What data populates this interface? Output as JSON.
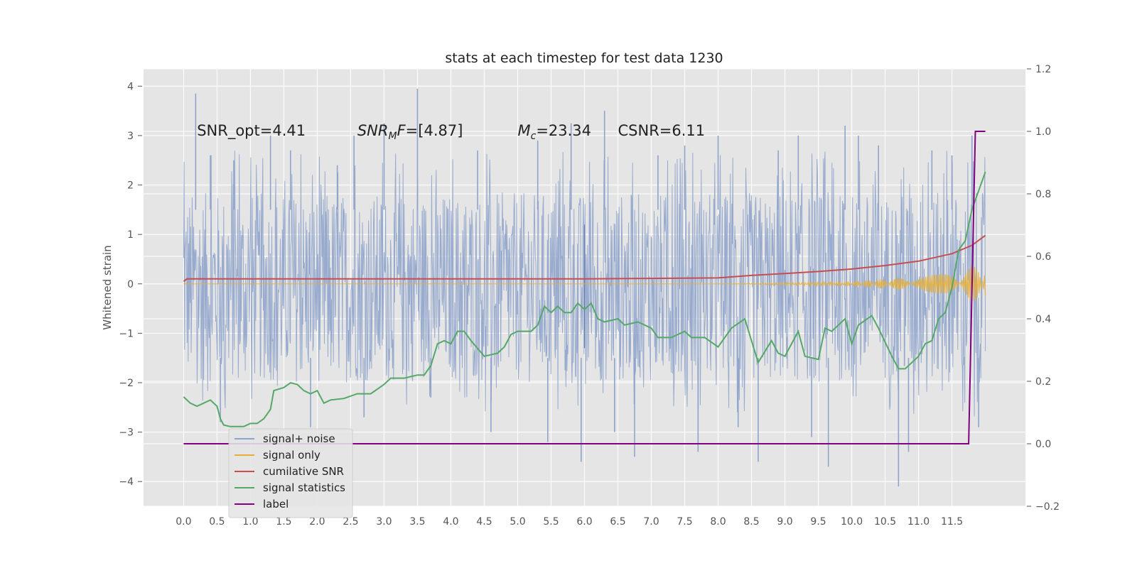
{
  "chart_data": {
    "type": "line",
    "title": "stats at each timestep for test data 1230",
    "xlabel": "",
    "ylabel": "Whitened strain",
    "ylabel_right": "",
    "xlim": [
      -0.6,
      12.6
    ],
    "ylim": [
      -4.5,
      4.35
    ],
    "ylim_right": [
      -0.2,
      1.2
    ],
    "xticks": [
      "0.0",
      "0.5",
      "1.0",
      "1.5",
      "2.0",
      "2.5",
      "3.0",
      "3.5",
      "4.0",
      "4.5",
      "5.0",
      "5.5",
      "6.0",
      "6.5",
      "7.0",
      "7.5",
      "8.0",
      "8.5",
      "9.0",
      "9.5",
      "10.0",
      "10.5",
      "11.0",
      "11.5"
    ],
    "yticks_left": [
      "4",
      "3",
      "2",
      "1",
      "0",
      "−1",
      "−2",
      "−3",
      "−4"
    ],
    "yticks_right": [
      "1.2",
      "1.0",
      "0.8",
      "0.6",
      "0.4",
      "0.2",
      "0.0",
      "−0.2"
    ],
    "grid": true,
    "legend_position": "lower-left",
    "annotations": [
      {
        "text": "SNR_opt=4.41",
        "x": 0.2,
        "y": 3.1
      },
      {
        "text": "SNR_MF=[4.87]",
        "math": true,
        "x": 2.6,
        "y": 3.1
      },
      {
        "text": "M_c=23.34",
        "math": true,
        "x": 5.0,
        "y": 3.1
      },
      {
        "text": "CSNR=6.11",
        "x": 6.5,
        "y": 3.1
      }
    ],
    "series": [
      {
        "name": "signal+ noise",
        "axis": "left",
        "color": "#8fa4cb",
        "x_range": [
          0,
          12.0
        ],
        "band": [
          -2.0,
          1.85
        ],
        "spikes": [
          {
            "x": 0.18,
            "y": 3.85
          },
          {
            "x": 0.4,
            "y": 2.6
          },
          {
            "x": 0.55,
            "y": -2.8
          },
          {
            "x": 0.75,
            "y": 2.5
          },
          {
            "x": 1.3,
            "y": 3.0
          },
          {
            "x": 1.6,
            "y": 2.7
          },
          {
            "x": 1.9,
            "y": -2.9
          },
          {
            "x": 2.3,
            "y": 2.4
          },
          {
            "x": 2.55,
            "y": 3.0
          },
          {
            "x": 2.7,
            "y": -2.7
          },
          {
            "x": 3.0,
            "y": 3.25
          },
          {
            "x": 3.5,
            "y": 3.95
          },
          {
            "x": 3.7,
            "y": -2.3
          },
          {
            "x": 4.4,
            "y": 2.7
          },
          {
            "x": 4.6,
            "y": -3.0
          },
          {
            "x": 5.3,
            "y": 2.9
          },
          {
            "x": 5.45,
            "y": -3.2
          },
          {
            "x": 5.8,
            "y": 3.25
          },
          {
            "x": 5.95,
            "y": -3.6
          },
          {
            "x": 6.3,
            "y": 3.5
          },
          {
            "x": 6.45,
            "y": -3.0
          },
          {
            "x": 6.75,
            "y": -3.5
          },
          {
            "x": 7.1,
            "y": 2.6
          },
          {
            "x": 7.5,
            "y": 2.8
          },
          {
            "x": 7.7,
            "y": -3.4
          },
          {
            "x": 8.0,
            "y": 3.0
          },
          {
            "x": 8.3,
            "y": -2.9
          },
          {
            "x": 8.6,
            "y": -3.6
          },
          {
            "x": 8.9,
            "y": 2.7
          },
          {
            "x": 9.2,
            "y": 3.0
          },
          {
            "x": 9.4,
            "y": -3.1
          },
          {
            "x": 9.65,
            "y": -3.7
          },
          {
            "x": 9.9,
            "y": 3.2
          },
          {
            "x": 10.1,
            "y": 3.0
          },
          {
            "x": 10.4,
            "y": 2.8
          },
          {
            "x": 10.7,
            "y": -4.1
          },
          {
            "x": 10.85,
            "y": -3.4
          },
          {
            "x": 11.2,
            "y": 2.7
          },
          {
            "x": 11.5,
            "y": 2.6
          },
          {
            "x": 11.8,
            "y": 3.0
          },
          {
            "x": 11.9,
            "y": -2.9
          }
        ]
      },
      {
        "name": "signal only",
        "axis": "left",
        "color": "#e5ae38",
        "points": [
          [
            0.0,
            0.0
          ],
          [
            8.0,
            0.0
          ],
          [
            10.0,
            0.05
          ],
          [
            11.0,
            0.15
          ],
          [
            11.5,
            0.25
          ],
          [
            11.8,
            0.35
          ],
          [
            12.0,
            0.4
          ]
        ]
      },
      {
        "name": "cumilative SNR",
        "axis": "left",
        "color": "#c44e52",
        "points": [
          [
            0.0,
            0.05
          ],
          [
            0.05,
            0.1
          ],
          [
            2.0,
            0.1
          ],
          [
            4.0,
            0.1
          ],
          [
            6.0,
            0.1
          ],
          [
            7.0,
            0.11
          ],
          [
            8.0,
            0.12
          ],
          [
            8.5,
            0.17
          ],
          [
            9.0,
            0.21
          ],
          [
            9.5,
            0.25
          ],
          [
            10.0,
            0.3
          ],
          [
            10.5,
            0.37
          ],
          [
            11.0,
            0.46
          ],
          [
            11.5,
            0.61
          ],
          [
            11.8,
            0.78
          ],
          [
            12.0,
            0.98
          ]
        ]
      },
      {
        "name": "signal statistics",
        "axis": "right",
        "color": "#55a868",
        "points": [
          [
            0.0,
            0.15
          ],
          [
            0.1,
            0.13
          ],
          [
            0.2,
            0.12
          ],
          [
            0.3,
            0.13
          ],
          [
            0.4,
            0.14
          ],
          [
            0.5,
            0.12
          ],
          [
            0.55,
            0.08
          ],
          [
            0.6,
            0.06
          ],
          [
            0.7,
            0.055
          ],
          [
            0.9,
            0.055
          ],
          [
            1.0,
            0.065
          ],
          [
            1.1,
            0.065
          ],
          [
            1.2,
            0.08
          ],
          [
            1.3,
            0.11
          ],
          [
            1.35,
            0.17
          ],
          [
            1.5,
            0.18
          ],
          [
            1.6,
            0.195
          ],
          [
            1.7,
            0.19
          ],
          [
            1.8,
            0.17
          ],
          [
            1.9,
            0.16
          ],
          [
            2.0,
            0.17
          ],
          [
            2.1,
            0.13
          ],
          [
            2.2,
            0.14
          ],
          [
            2.4,
            0.145
          ],
          [
            2.6,
            0.16
          ],
          [
            2.8,
            0.16
          ],
          [
            3.0,
            0.19
          ],
          [
            3.1,
            0.21
          ],
          [
            3.3,
            0.21
          ],
          [
            3.5,
            0.22
          ],
          [
            3.6,
            0.22
          ],
          [
            3.7,
            0.25
          ],
          [
            3.8,
            0.32
          ],
          [
            3.9,
            0.33
          ],
          [
            4.0,
            0.32
          ],
          [
            4.1,
            0.36
          ],
          [
            4.2,
            0.36
          ],
          [
            4.3,
            0.33
          ],
          [
            4.5,
            0.28
          ],
          [
            4.7,
            0.29
          ],
          [
            4.8,
            0.31
          ],
          [
            4.9,
            0.35
          ],
          [
            5.0,
            0.36
          ],
          [
            5.2,
            0.36
          ],
          [
            5.3,
            0.38
          ],
          [
            5.4,
            0.44
          ],
          [
            5.5,
            0.42
          ],
          [
            5.6,
            0.44
          ],
          [
            5.7,
            0.42
          ],
          [
            5.8,
            0.42
          ],
          [
            5.9,
            0.45
          ],
          [
            6.0,
            0.43
          ],
          [
            6.1,
            0.45
          ],
          [
            6.2,
            0.4
          ],
          [
            6.3,
            0.39
          ],
          [
            6.5,
            0.4
          ],
          [
            6.6,
            0.38
          ],
          [
            6.8,
            0.39
          ],
          [
            7.0,
            0.37
          ],
          [
            7.1,
            0.34
          ],
          [
            7.3,
            0.34
          ],
          [
            7.5,
            0.36
          ],
          [
            7.6,
            0.34
          ],
          [
            7.8,
            0.34
          ],
          [
            8.0,
            0.31
          ],
          [
            8.2,
            0.37
          ],
          [
            8.4,
            0.4
          ],
          [
            8.5,
            0.33
          ],
          [
            8.6,
            0.26
          ],
          [
            8.8,
            0.33
          ],
          [
            8.9,
            0.29
          ],
          [
            9.0,
            0.28
          ],
          [
            9.2,
            0.36
          ],
          [
            9.3,
            0.28
          ],
          [
            9.5,
            0.27
          ],
          [
            9.6,
            0.37
          ],
          [
            9.7,
            0.36
          ],
          [
            9.9,
            0.4
          ],
          [
            10.0,
            0.32
          ],
          [
            10.1,
            0.38
          ],
          [
            10.3,
            0.41
          ],
          [
            10.4,
            0.37
          ],
          [
            10.6,
            0.28
          ],
          [
            10.7,
            0.24
          ],
          [
            10.8,
            0.24
          ],
          [
            11.0,
            0.28
          ],
          [
            11.1,
            0.32
          ],
          [
            11.2,
            0.33
          ],
          [
            11.3,
            0.4
          ],
          [
            11.4,
            0.42
          ],
          [
            11.5,
            0.5
          ],
          [
            11.6,
            0.62
          ],
          [
            11.7,
            0.65
          ],
          [
            11.8,
            0.75
          ],
          [
            11.9,
            0.81
          ],
          [
            12.0,
            0.87
          ]
        ]
      },
      {
        "name": "label",
        "axis": "right",
        "color": "#800080",
        "points": [
          [
            0.0,
            0.0
          ],
          [
            11.75,
            0.0
          ],
          [
            11.85,
            1.0
          ],
          [
            12.0,
            1.0
          ]
        ]
      }
    ]
  },
  "legend": {
    "items": [
      {
        "label": "signal+ noise",
        "color": "#8fa4cb"
      },
      {
        "label": "signal only",
        "color": "#e5ae38"
      },
      {
        "label": "cumilative SNR",
        "color": "#c44e52"
      },
      {
        "label": "signal statistics",
        "color": "#55a868"
      },
      {
        "label": "label",
        "color": "#800080"
      }
    ]
  }
}
